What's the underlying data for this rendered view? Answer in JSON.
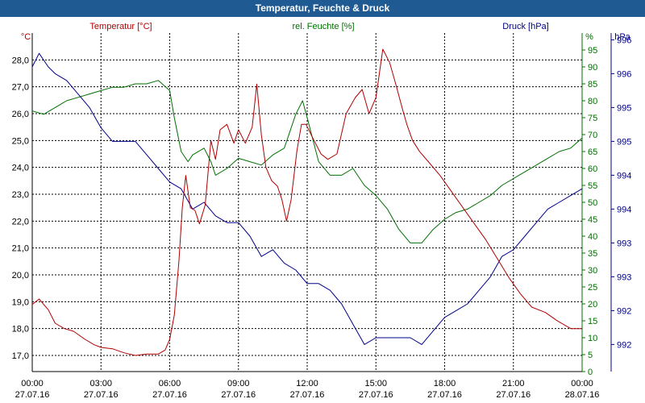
{
  "window": {
    "title": "Temperatur, Feuchte & Druck"
  },
  "chart_data": {
    "type": "line",
    "title": "Temperatur, Feuchte & Druck",
    "grid": true,
    "colors": {
      "temperature": "#b00000",
      "humidity": "#007000",
      "pressure": "#00008b",
      "axis": "#000000"
    },
    "x_ticks": [
      {
        "time": "00:00",
        "date": "27.07.16"
      },
      {
        "time": "03:00",
        "date": "27.07.16"
      },
      {
        "time": "06:00",
        "date": "27.07.16"
      },
      {
        "time": "09:00",
        "date": "27.07.16"
      },
      {
        "time": "12:00",
        "date": "27.07.16"
      },
      {
        "time": "15:00",
        "date": "27.07.16"
      },
      {
        "time": "18:00",
        "date": "27.07.16"
      },
      {
        "time": "21:00",
        "date": "27.07.16"
      },
      {
        "time": "00:00",
        "date": "28.07.16"
      }
    ],
    "x_range_hours": [
      0,
      24
    ],
    "temperature": {
      "label": "Temperatur [°C]",
      "unit": "°C",
      "ylim": [
        16.4,
        29.0
      ],
      "ticks": [
        "17,0",
        "18,0",
        "19,0",
        "20,0",
        "21,0",
        "22,0",
        "23,0",
        "24,0",
        "25,0",
        "26,0",
        "27,0",
        "28,0"
      ],
      "x": [
        0,
        0.3,
        0.7,
        1,
        1.4,
        1.8,
        2.3,
        2.7,
        3,
        3.5,
        4,
        4.5,
        5,
        5.5,
        5.8,
        6,
        6.2,
        6.4,
        6.55,
        6.7,
        6.9,
        7.1,
        7.3,
        7.55,
        7.8,
        8,
        8.2,
        8.5,
        8.8,
        9,
        9.3,
        9.6,
        9.8,
        10,
        10.2,
        10.45,
        10.7,
        10.9,
        11.1,
        11.3,
        11.55,
        11.75,
        11.95,
        12.3,
        12.6,
        12.9,
        13.3,
        13.7,
        14.1,
        14.4,
        14.7,
        15,
        15.3,
        15.6,
        15.9,
        16.15,
        16.35,
        16.6,
        16.9,
        17.3,
        17.8,
        18.3,
        18.8,
        19.3,
        19.8,
        20.3,
        20.8,
        21.3,
        21.8,
        22.4,
        22.9,
        23.5,
        24
      ],
      "values": [
        18.9,
        19.1,
        18.7,
        18.2,
        18.0,
        17.9,
        17.6,
        17.4,
        17.3,
        17.25,
        17.1,
        17.0,
        17.05,
        17.05,
        17.2,
        17.6,
        18.5,
        20.5,
        22.5,
        23.7,
        22.5,
        22.4,
        21.9,
        22.6,
        25.0,
        24.3,
        25.4,
        25.6,
        24.9,
        25.4,
        24.9,
        25.5,
        27.1,
        25.2,
        24.0,
        23.5,
        23.3,
        22.8,
        22.0,
        22.8,
        24.6,
        25.6,
        25.6,
        25.0,
        24.5,
        24.3,
        24.5,
        26.0,
        26.6,
        26.9,
        26.0,
        26.6,
        28.4,
        27.9,
        27.0,
        26.2,
        25.6,
        25.0,
        24.6,
        24.2,
        23.7,
        23.1,
        22.5,
        21.9,
        21.3,
        20.6,
        19.9,
        19.3,
        18.8,
        18.6,
        18.3,
        18.0,
        18.0
      ]
    },
    "humidity": {
      "label": "rel. Feuchte [%]",
      "unit": "%",
      "ylim": [
        0,
        100
      ],
      "ticks": [
        "0",
        "5",
        "10",
        "15",
        "20",
        "25",
        "30",
        "35",
        "40",
        "45",
        "50",
        "55",
        "60",
        "65",
        "70",
        "75",
        "80",
        "85",
        "90",
        "95"
      ],
      "x": [
        0,
        0.5,
        1,
        1.5,
        2,
        2.5,
        3,
        3.5,
        4,
        4.5,
        5,
        5.5,
        6,
        6.2,
        6.5,
        6.8,
        7,
        7.5,
        7.8,
        8,
        8.5,
        9,
        9.5,
        10,
        10.5,
        11,
        11.5,
        11.8,
        12,
        12.5,
        13,
        13.5,
        14,
        14.5,
        15,
        15.5,
        16,
        16.5,
        17,
        17.5,
        18,
        18.5,
        19,
        19.5,
        20,
        20.5,
        21,
        21.5,
        22,
        22.5,
        23,
        23.5,
        24
      ],
      "values": [
        77,
        76,
        78,
        80,
        81,
        82,
        83,
        84,
        84,
        85,
        85,
        86,
        83,
        75,
        65,
        62,
        64,
        66,
        62,
        58,
        60,
        63,
        62,
        61,
        64,
        66,
        76,
        80,
        75,
        62,
        58,
        58,
        60,
        55,
        52,
        48,
        42,
        38,
        38,
        42,
        45,
        47,
        48,
        50,
        52,
        55,
        57,
        59,
        61,
        63,
        65,
        66,
        69
      ]
    },
    "pressure": {
      "label": "Druck [hPa]",
      "unit": "hPa",
      "ylim": [
        991.6,
        996.6
      ],
      "ticks": [
        {
          "value": 992.0,
          "label": "992"
        },
        {
          "value": 992.5,
          "label": "992"
        },
        {
          "value": 993.0,
          "label": "993"
        },
        {
          "value": 993.5,
          "label": "993"
        },
        {
          "value": 994.0,
          "label": "994"
        },
        {
          "value": 994.5,
          "label": "994"
        },
        {
          "value": 995.0,
          "label": "995"
        },
        {
          "value": 995.5,
          "label": "995"
        },
        {
          "value": 996.0,
          "label": "996"
        },
        {
          "value": 996.5,
          "label": "996"
        }
      ],
      "x": [
        0,
        0.3,
        0.7,
        1,
        1.5,
        2,
        2.5,
        3,
        3.5,
        4,
        4.5,
        5,
        5.5,
        6,
        6.5,
        7,
        7.5,
        8,
        8.5,
        9,
        9.5,
        10,
        10.5,
        11,
        11.5,
        12,
        12.5,
        13,
        13.5,
        14,
        14.5,
        15,
        15.5,
        16,
        16.5,
        17,
        17.5,
        18,
        18.5,
        19,
        19.5,
        20,
        20.5,
        21,
        21.5,
        22,
        22.5,
        23,
        23.5,
        24
      ],
      "values": [
        996.1,
        996.3,
        996.1,
        996.0,
        995.9,
        995.7,
        995.5,
        995.2,
        995.0,
        995.0,
        995.0,
        994.8,
        994.6,
        994.4,
        994.3,
        994.0,
        994.1,
        993.9,
        993.8,
        993.8,
        993.6,
        993.3,
        993.4,
        993.2,
        993.1,
        992.9,
        992.9,
        992.8,
        992.6,
        992.3,
        992.0,
        992.1,
        992.1,
        992.1,
        992.1,
        992.0,
        992.2,
        992.4,
        992.5,
        992.6,
        992.8,
        993.0,
        993.3,
        993.4,
        993.6,
        993.8,
        994.0,
        994.1,
        994.2,
        994.3
      ]
    }
  }
}
